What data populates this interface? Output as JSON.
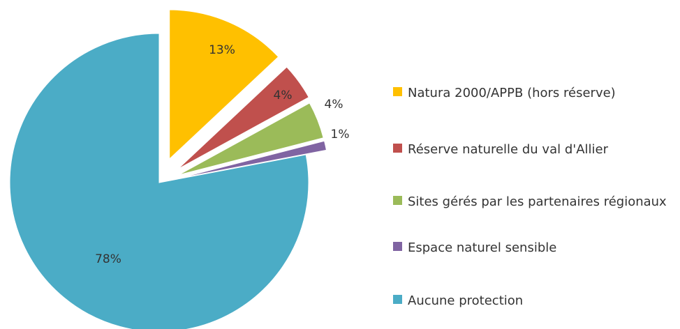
{
  "chart_data": {
    "type": "pie",
    "categories": [
      "Natura 2000/APPB (hors réserve)",
      "Réserve naturelle  du val d'Allier",
      "Sites gérés par les partenaires régionaux",
      "Espace naturel  sensible",
      "Aucune  protection"
    ],
    "values": [
      13,
      4,
      4,
      1,
      78
    ],
    "value_labels": [
      "13%",
      "4%",
      "4%",
      "1%",
      "78%"
    ],
    "colors": [
      "#FFC000",
      "#C0504D",
      "#9BBB59",
      "#8064A2",
      "#4BACC6"
    ],
    "legend": "right"
  }
}
